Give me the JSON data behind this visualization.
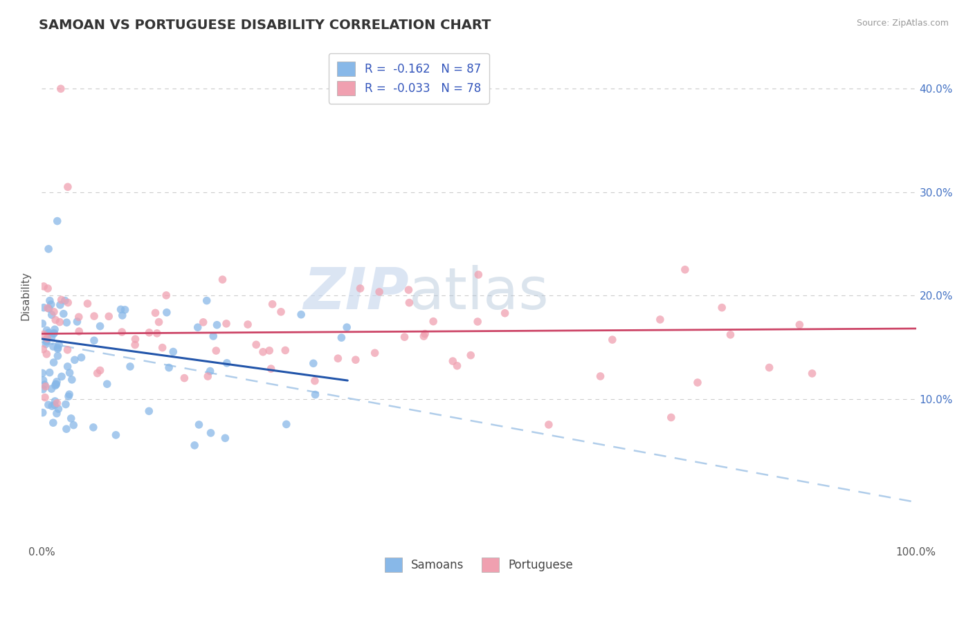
{
  "title": "SAMOAN VS PORTUGUESE DISABILITY CORRELATION CHART",
  "source": "Source: ZipAtlas.com",
  "ylabel": "Disability",
  "xlim": [
    0,
    1
  ],
  "ylim": [
    -0.04,
    0.44
  ],
  "yticks": [
    0.1,
    0.2,
    0.3,
    0.4
  ],
  "ytick_labels": [
    "10.0%",
    "20.0%",
    "30.0%",
    "40.0%"
  ],
  "xtick_labels": [
    "0.0%",
    "100.0%"
  ],
  "samoan_color": "#88b8e8",
  "portuguese_color": "#f0a0b0",
  "samoan_line_color": "#2255aa",
  "portuguese_line_color": "#cc4466",
  "portuguese_dash_color": "#a8c8e8",
  "R_samoan": -0.162,
  "N_samoan": 87,
  "R_portuguese": -0.033,
  "N_portuguese": 78,
  "watermark_zip": "ZIP",
  "watermark_atlas": "atlas",
  "legend_label_samoan": "Samoans",
  "legend_label_portuguese": "Portuguese",
  "title_fontsize": 14,
  "source_fontsize": 9,
  "tick_fontsize": 11,
  "legend_fontsize": 12
}
